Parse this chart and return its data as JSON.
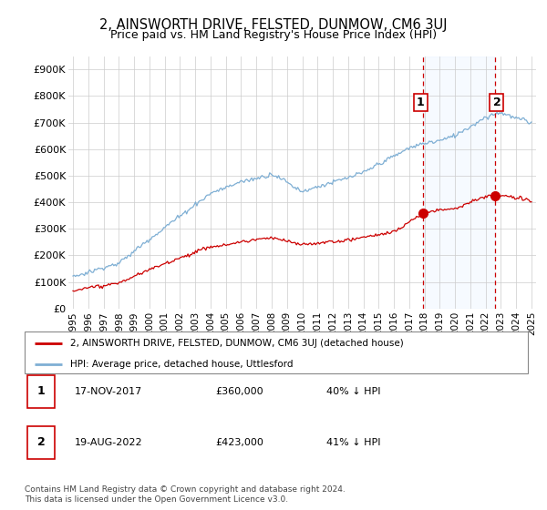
{
  "title": "2, AINSWORTH DRIVE, FELSTED, DUNMOW, CM6 3UJ",
  "subtitle": "Price paid vs. HM Land Registry's House Price Index (HPI)",
  "property_label": "2, AINSWORTH DRIVE, FELSTED, DUNMOW, CM6 3UJ (detached house)",
  "hpi_label": "HPI: Average price, detached house, Uttlesford",
  "transaction1": {
    "label": "1",
    "date": "17-NOV-2017",
    "price": "£360,000",
    "pct": "40% ↓ HPI"
  },
  "transaction2": {
    "label": "2",
    "date": "19-AUG-2022",
    "price": "£423,000",
    "pct": "41% ↓ HPI"
  },
  "footer": "Contains HM Land Registry data © Crown copyright and database right 2024.\nThis data is licensed under the Open Government Licence v3.0.",
  "property_color": "#cc0000",
  "hpi_color": "#7fafd4",
  "shade_color": "#ddeeff",
  "dashed_vline_color": "#cc0000",
  "marker1_x": 2017.88,
  "marker2_x": 2022.63,
  "marker1_y": 360000,
  "marker2_y": 423000,
  "ylim": [
    0,
    950000
  ],
  "xlim_start": 1994.7,
  "xlim_end": 2025.3,
  "yticks": [
    0,
    100000,
    200000,
    300000,
    400000,
    500000,
    600000,
    700000,
    800000,
    900000
  ],
  "ytick_labels": [
    "£0",
    "£100K",
    "£200K",
    "£300K",
    "£400K",
    "£500K",
    "£600K",
    "£700K",
    "£800K",
    "£900K"
  ],
  "xticks": [
    1995,
    1996,
    1997,
    1998,
    1999,
    2000,
    2001,
    2002,
    2003,
    2004,
    2005,
    2006,
    2007,
    2008,
    2009,
    2010,
    2011,
    2012,
    2013,
    2014,
    2015,
    2016,
    2017,
    2018,
    2019,
    2020,
    2021,
    2022,
    2023,
    2024,
    2025
  ]
}
